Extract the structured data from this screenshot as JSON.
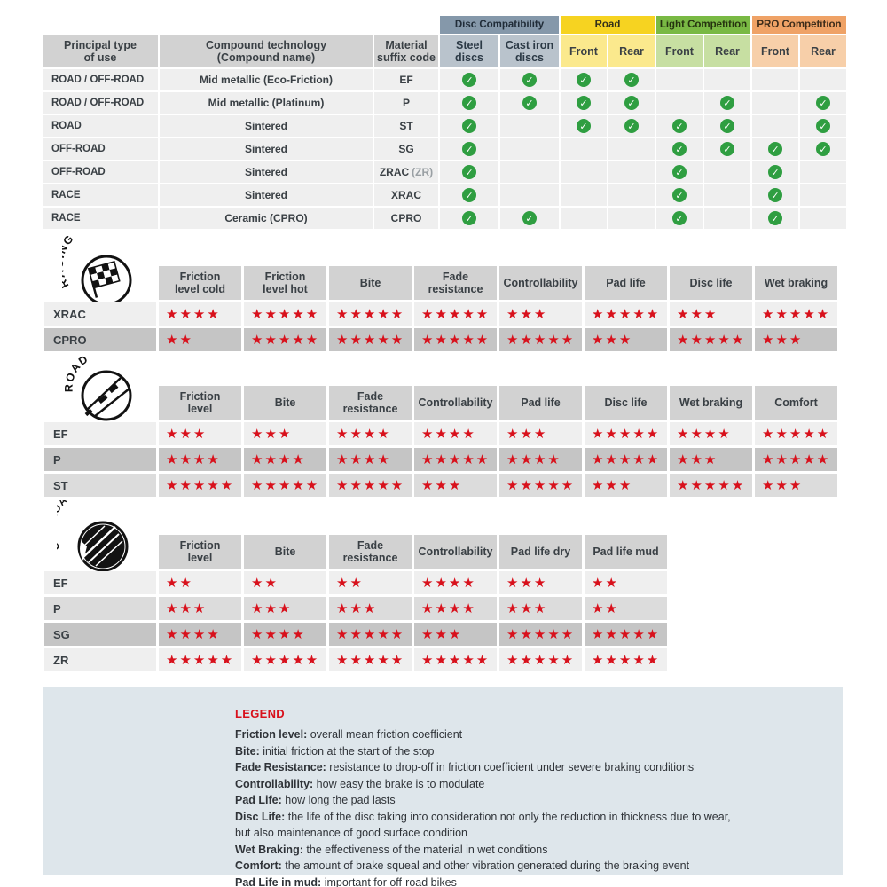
{
  "colors": {
    "accent_red": "#d8111c",
    "check_green": "#2f9e41",
    "disc_compatibility_header": "#8598aa",
    "road_header": "#f6d321",
    "light_competition_header": "#79b944",
    "pro_competition_header": "#efa266",
    "header_gray": "#d2d2d2",
    "row_light": "#efefef",
    "row_mid": "#dcdcdc",
    "row_dark": "#c5c5c5",
    "legend_bg": "#dee6eb"
  },
  "compat_table": {
    "col_headers": [
      "Principal type\nof use",
      "Compound technology\n(Compound name)",
      "Material\nsuffix code"
    ],
    "groups": [
      {
        "id": "disc",
        "label": "Disc Compatibility",
        "subs": [
          "Steel\ndiscs",
          "Cast iron\ndiscs"
        ]
      },
      {
        "id": "road",
        "label": "Road",
        "subs": [
          "Front",
          "Rear"
        ]
      },
      {
        "id": "light",
        "label": "Light Competition",
        "subs": [
          "Front",
          "Rear"
        ]
      },
      {
        "id": "pro",
        "label": "PRO Competition",
        "subs": [
          "Front",
          "Rear"
        ]
      }
    ],
    "check_icon": "✓",
    "rows": [
      {
        "use": "ROAD / OFF-ROAD",
        "tech": "Mid metallic (Eco-Friction)",
        "code": "EF",
        "code_suffix": "",
        "checks": [
          1,
          1,
          1,
          1,
          0,
          0,
          0,
          0
        ]
      },
      {
        "use": "ROAD / OFF-ROAD",
        "tech": "Mid metallic (Platinum)",
        "code": "P",
        "code_suffix": "",
        "checks": [
          1,
          1,
          1,
          1,
          0,
          1,
          0,
          1
        ]
      },
      {
        "use": "ROAD",
        "tech": "Sintered",
        "code": "ST",
        "code_suffix": "",
        "checks": [
          1,
          0,
          1,
          1,
          1,
          1,
          0,
          1
        ]
      },
      {
        "use": "OFF-ROAD",
        "tech": "Sintered",
        "code": "SG",
        "code_suffix": "",
        "checks": [
          1,
          0,
          0,
          0,
          1,
          1,
          1,
          1
        ]
      },
      {
        "use": "OFF-ROAD",
        "tech": "Sintered",
        "code": "ZRAC",
        "code_suffix": "(ZR)",
        "checks": [
          1,
          0,
          0,
          0,
          1,
          0,
          1,
          0
        ]
      },
      {
        "use": "RACE",
        "tech": "Sintered",
        "code": "XRAC",
        "code_suffix": "",
        "checks": [
          1,
          0,
          0,
          0,
          1,
          0,
          1,
          0
        ]
      },
      {
        "use": "RACE",
        "tech": "Ceramic (CPRO)",
        "code": "CPRO",
        "code_suffix": "",
        "checks": [
          1,
          1,
          0,
          0,
          1,
          0,
          1,
          0
        ]
      }
    ]
  },
  "sections": [
    {
      "id": "racing",
      "icon_label": "RACING",
      "columns": [
        "Friction\nlevel cold",
        "Friction\nlevel hot",
        "Bite",
        "Fade\nresistance",
        "Controllability",
        "Pad life",
        "Disc life",
        "Wet braking"
      ],
      "rows": [
        {
          "label": "XRAC",
          "shade": "light",
          "ratings": [
            4,
            5,
            5,
            5,
            3,
            5,
            3,
            5
          ]
        },
        {
          "label": "CPRO",
          "shade": "dark",
          "ratings": [
            2,
            5,
            5,
            5,
            5,
            3,
            5,
            3
          ]
        }
      ]
    },
    {
      "id": "road",
      "icon_label": "ROAD",
      "columns": [
        "Friction\nlevel",
        "Bite",
        "Fade\nresistance",
        "Controllability",
        "Pad life",
        "Disc life",
        "Wet braking",
        "Comfort"
      ],
      "rows": [
        {
          "label": "EF",
          "shade": "light",
          "ratings": [
            3,
            3,
            4,
            4,
            3,
            5,
            4,
            5
          ]
        },
        {
          "label": "P",
          "shade": "dark",
          "ratings": [
            4,
            4,
            4,
            5,
            4,
            5,
            3,
            5
          ]
        },
        {
          "label": "ST",
          "shade": "mid",
          "ratings": [
            5,
            5,
            5,
            3,
            5,
            3,
            5,
            3
          ]
        }
      ]
    },
    {
      "id": "offroad",
      "icon_label": "OFF-ROAD",
      "columns": [
        "Friction\nlevel",
        "Bite",
        "Fade\nresistance",
        "Controllability",
        "Pad life dry",
        "Pad life mud"
      ],
      "rows": [
        {
          "label": "EF",
          "shade": "light",
          "ratings": [
            2,
            2,
            2,
            4,
            3,
            2
          ]
        },
        {
          "label": "P",
          "shade": "mid",
          "ratings": [
            3,
            3,
            3,
            4,
            3,
            2
          ]
        },
        {
          "label": "SG",
          "shade": "dark",
          "ratings": [
            4,
            4,
            5,
            3,
            5,
            5
          ]
        },
        {
          "label": "ZR",
          "shade": "light",
          "ratings": [
            5,
            5,
            5,
            5,
            5,
            5
          ]
        }
      ]
    }
  ],
  "star_symbol": "★",
  "legend": {
    "title": "LEGEND",
    "items": [
      {
        "term": "Friction level:",
        "desc": "overall mean friction coefficient"
      },
      {
        "term": "Bite:",
        "desc": "initial friction at the start of the stop"
      },
      {
        "term": "Fade Resistance:",
        "desc": "resistance to drop-off in friction coefficient under severe braking conditions"
      },
      {
        "term": "Controllability:",
        "desc": "how easy the brake is to modulate"
      },
      {
        "term": "Pad Life:",
        "desc": "how long the pad lasts"
      },
      {
        "term": "Disc Life:",
        "desc": "the life of the disc taking into consideration not only the reduction in thickness due to wear,"
      },
      {
        "term": "",
        "desc": "but also maintenance of good surface condition"
      },
      {
        "term": "Wet Braking:",
        "desc": "the effectiveness of the material in wet conditions"
      },
      {
        "term": "Comfort:",
        "desc": "the amount of brake squeal and other vibration generated during the braking event"
      },
      {
        "term": "Pad Life in mud:",
        "desc": "important for off-road bikes"
      }
    ]
  }
}
